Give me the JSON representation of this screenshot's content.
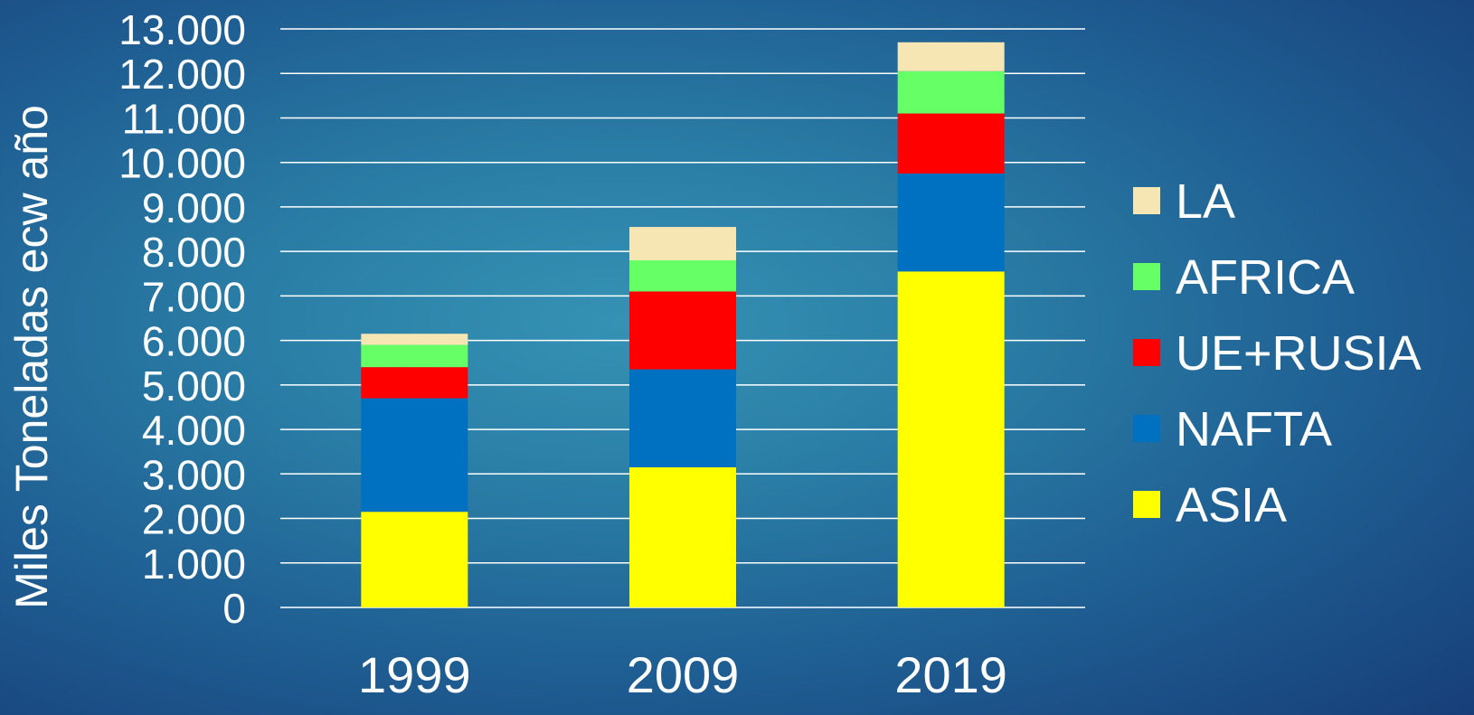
{
  "chart_data": {
    "type": "bar",
    "stacked": true,
    "title": "",
    "xlabel": "",
    "ylabel": "Miles Toneladas ecw año",
    "categories": [
      "1999",
      "2009",
      "2019"
    ],
    "ylim": [
      0,
      13000
    ],
    "yticks": [
      0,
      1000,
      2000,
      3000,
      4000,
      5000,
      6000,
      7000,
      8000,
      9000,
      10000,
      11000,
      12000,
      13000
    ],
    "ytick_labels": [
      "0",
      "1.000",
      "2.000",
      "3.000",
      "4.000",
      "5.000",
      "6.000",
      "7.000",
      "8.000",
      "9.000",
      "10.000",
      "11.000",
      "12.000",
      "13.000"
    ],
    "grid": true,
    "legend_position": "right",
    "series": [
      {
        "name": "ASIA",
        "color": "#ffff00",
        "values": [
          2150,
          3150,
          7550
        ]
      },
      {
        "name": "NAFTA",
        "color": "#0070c0",
        "values": [
          2550,
          2200,
          2200
        ]
      },
      {
        "name": "UE+RUSIA",
        "color": "#ff0000",
        "values": [
          700,
          1750,
          1350
        ]
      },
      {
        "name": "AFRICA",
        "color": "#66ff66",
        "values": [
          500,
          700,
          950
        ]
      },
      {
        "name": "LA",
        "color": "#f5e6b3",
        "values": [
          250,
          750,
          650
        ]
      }
    ]
  }
}
